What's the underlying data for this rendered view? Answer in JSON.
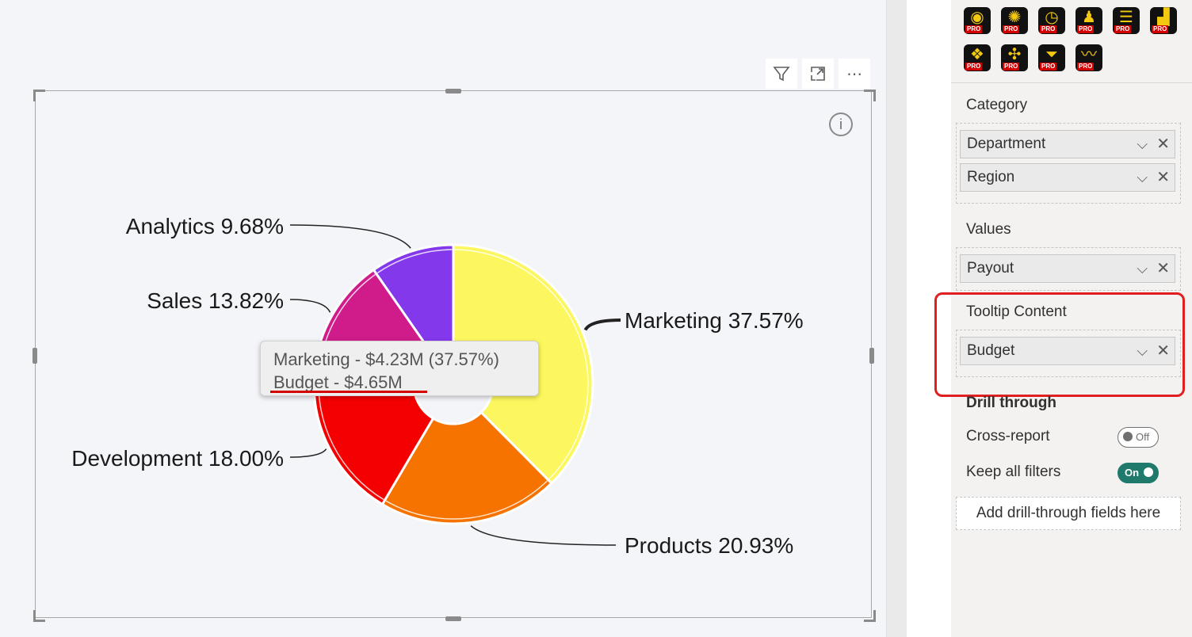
{
  "visual_header": {
    "filter_icon": "filter-icon",
    "focus_icon": "focus-mode-icon",
    "more_icon": "more-options-icon",
    "more_glyph": "⋯"
  },
  "info_icon_glyph": "i",
  "chart_data": {
    "type": "pie",
    "variant": "donut",
    "slices": [
      {
        "label": "Marketing",
        "percent": 37.57,
        "color": "#FCF75E",
        "text": "Marketing 37.57%"
      },
      {
        "label": "Products",
        "percent": 20.93,
        "color": "#F77300",
        "text": "Products 20.93%"
      },
      {
        "label": "Development",
        "percent": 18.0,
        "color": "#F50000",
        "text": "Development 18.00%"
      },
      {
        "label": "Sales",
        "percent": 13.82,
        "color": "#D01C8B",
        "text": "Sales 13.82%"
      },
      {
        "label": "Analytics",
        "percent": 9.68,
        "color": "#8338EC",
        "text": "Analytics 9.68%"
      }
    ]
  },
  "tooltip": {
    "line1": "Marketing - $4.23M (37.57%)",
    "line2": "Budget - $4.65M"
  },
  "viz_pane": {
    "icons": [
      {
        "name": "radial-gauge-icon",
        "glyph": "◉",
        "badge": "PRO"
      },
      {
        "name": "sunburst-icon",
        "glyph": "✺",
        "badge": "PRO"
      },
      {
        "name": "clock-icon",
        "glyph": "◷",
        "badge": "PRO"
      },
      {
        "name": "people-chart-icon",
        "glyph": "♟",
        "badge": "PRO"
      },
      {
        "name": "flow-chart-icon",
        "glyph": "☰",
        "badge": "PRO"
      },
      {
        "name": "step-chart-icon",
        "glyph": "▟",
        "badge": "PRO"
      },
      {
        "name": "bubble-chart-icon",
        "glyph": "❖",
        "badge": "PRO"
      },
      {
        "name": "network-chart-icon",
        "glyph": "✣",
        "badge": "PRO"
      },
      {
        "name": "funnel-chart-icon",
        "glyph": "⏷",
        "badge": "PRO"
      },
      {
        "name": "area-chart-icon",
        "glyph": "〰",
        "badge": "PRO"
      }
    ],
    "category_label": "Category",
    "category_fields": [
      "Department",
      "Region"
    ],
    "values_label": "Values",
    "values_fields": [
      "Payout"
    ],
    "tooltip_label": "Tooltip Content",
    "tooltip_fields": [
      "Budget"
    ],
    "drill_through_label": "Drill through",
    "cross_report_label": "Cross-report",
    "cross_report_state": "Off",
    "keep_filters_label": "Keep all filters",
    "keep_filters_state": "On",
    "add_drill_label": "Add drill-through fields here",
    "chevron": "⌵",
    "remove": "✕"
  },
  "colors": {
    "highlight": "#E02020",
    "toggle_on": "#1F7A6B"
  }
}
